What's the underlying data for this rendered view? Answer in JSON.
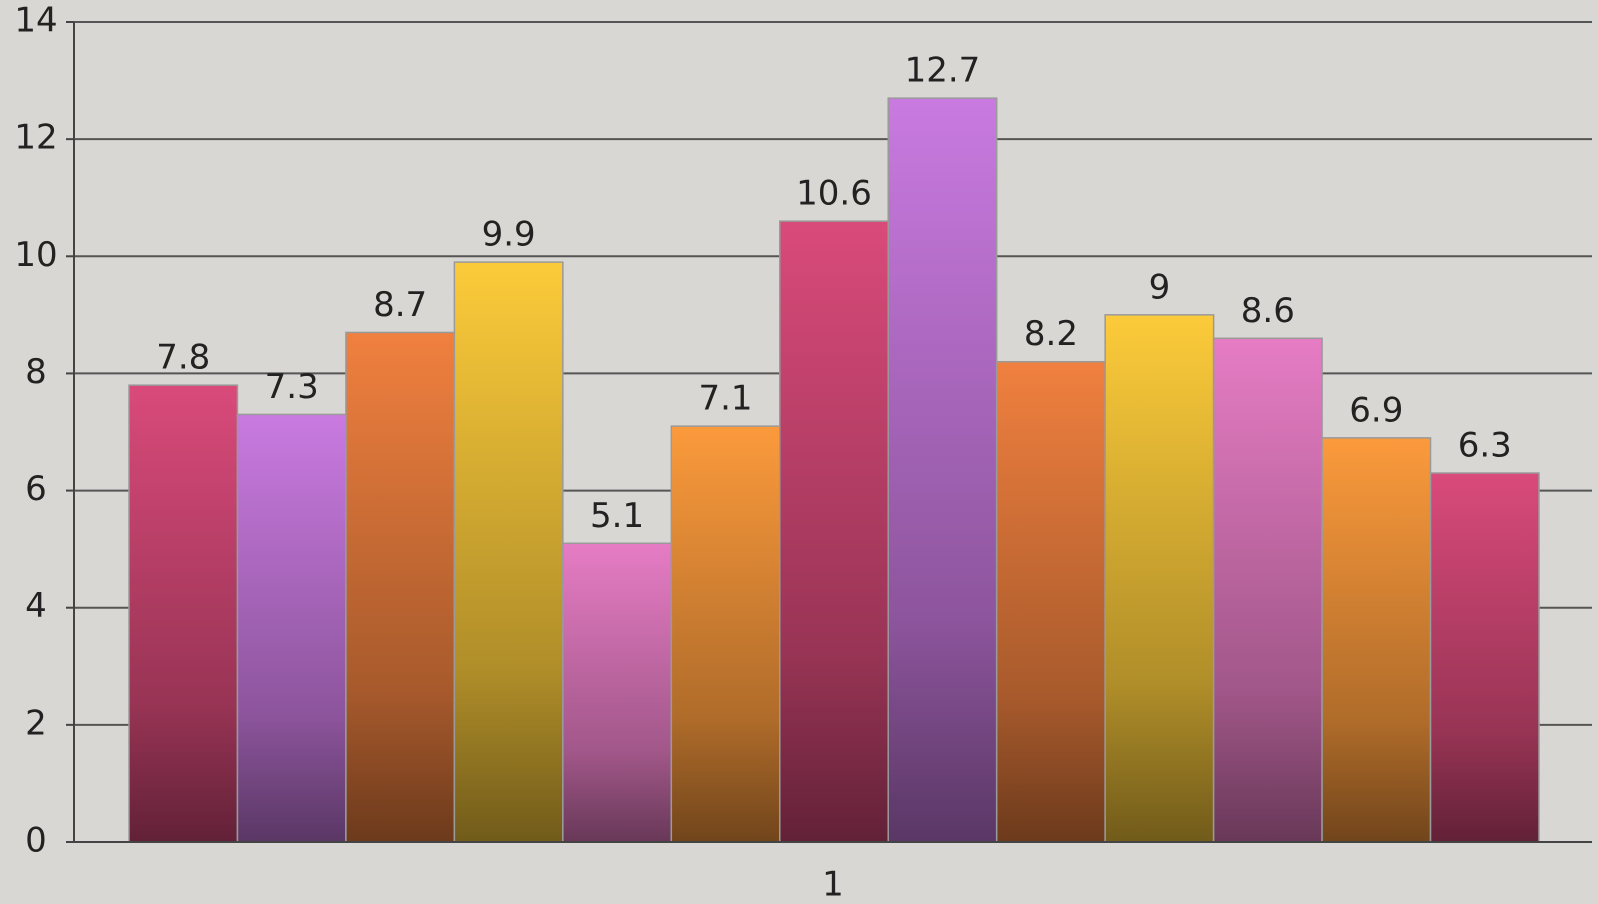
{
  "chart_data": {
    "type": "bar",
    "categories": [
      "1"
    ],
    "series": [
      {
        "color": "#d94a7a",
        "values": [
          7.8
        ]
      },
      {
        "color": "#c97ae0",
        "values": [
          7.3
        ]
      },
      {
        "color": "#f0803f",
        "values": [
          8.7
        ]
      },
      {
        "color": "#fccb3a",
        "values": [
          9.9
        ]
      },
      {
        "color": "#e67cc4",
        "values": [
          5.1
        ]
      },
      {
        "color": "#fb9a3c",
        "values": [
          7.1
        ]
      },
      {
        "color": "#d94a7a",
        "values": [
          10.6
        ]
      },
      {
        "color": "#c97ae0",
        "values": [
          12.7
        ]
      },
      {
        "color": "#f0803f",
        "values": [
          8.2
        ]
      },
      {
        "color": "#fccb3a",
        "values": [
          9
        ]
      },
      {
        "color": "#e67cc4",
        "values": [
          8.6
        ]
      },
      {
        "color": "#fb9a3c",
        "values": [
          6.9
        ]
      },
      {
        "color": "#d94a7a",
        "values": [
          6.3
        ]
      }
    ],
    "ylim": [
      0,
      14
    ],
    "yticks": [
      0,
      2,
      4,
      6,
      8,
      10,
      12,
      14
    ],
    "grid": true
  }
}
